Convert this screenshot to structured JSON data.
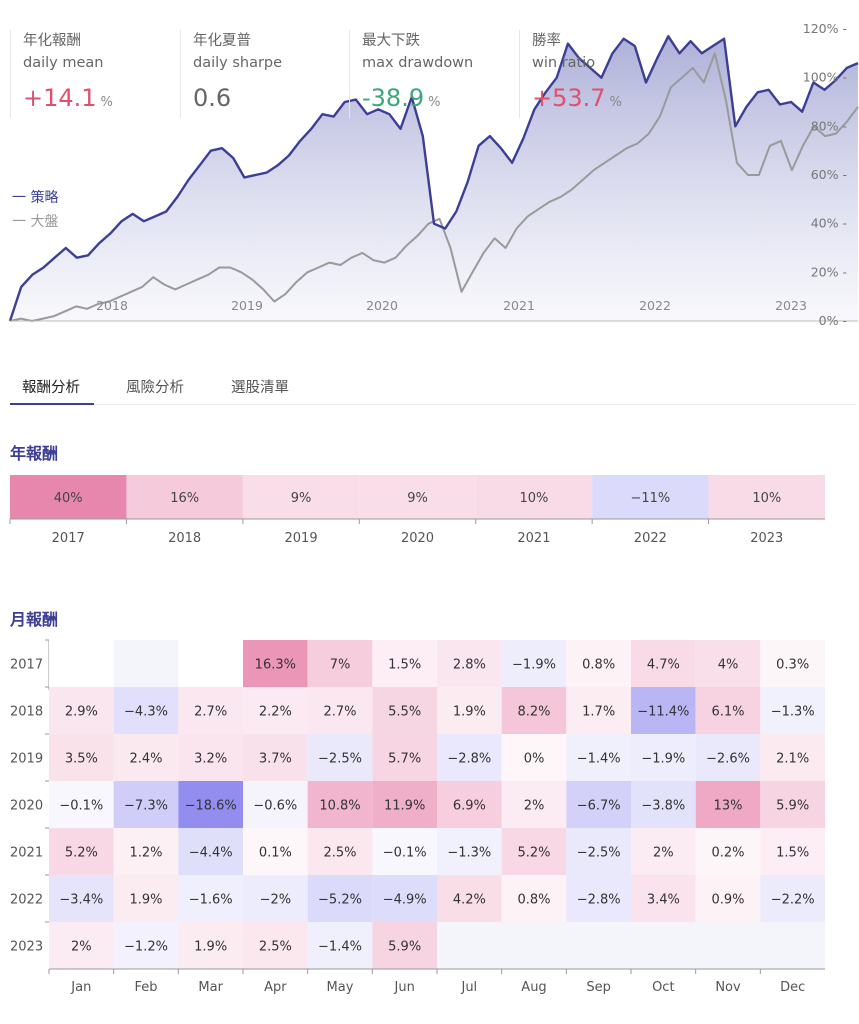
{
  "stats": [
    {
      "zh": "年化報酬",
      "en": "daily mean",
      "value": "+14.1",
      "unit": "%",
      "color": "#e0506e"
    },
    {
      "zh": "年化夏普",
      "en": "daily sharpe",
      "value": "0.6",
      "unit": "",
      "color": "#666666"
    },
    {
      "zh": "最大下跌",
      "en": "max drawdown",
      "value": "-38.9",
      "unit": "%",
      "color": "#3aa87b"
    },
    {
      "zh": "勝率",
      "en": "win ratio",
      "value": "+53.7",
      "unit": "%",
      "color": "#e0506e"
    }
  ],
  "legend": {
    "strategy": "一 策略",
    "market": "一 大盤"
  },
  "tabs": [
    "報酬分析",
    "風險分析",
    "選股清單"
  ],
  "sections": {
    "annual": "年報酬",
    "monthly": "月報酬"
  },
  "chart_data": [
    {
      "type": "area",
      "x_ticks": [
        "2018",
        "2019",
        "2020",
        "2021",
        "2022",
        "2023"
      ],
      "y_ticks": [
        "0%",
        "20%",
        "40%",
        "60%",
        "80%",
        "100%",
        "120%"
      ],
      "ylim": [
        0,
        120
      ],
      "series": [
        {
          "name": "策略",
          "color": "#3c3f94",
          "values": [
            0,
            14,
            19,
            22,
            26,
            30,
            26,
            27,
            32,
            36,
            41,
            44,
            41,
            43,
            45,
            51,
            58,
            64,
            70,
            71,
            67,
            59,
            60,
            61,
            64,
            68,
            74,
            79,
            85,
            84,
            90,
            91,
            85,
            87,
            85,
            79,
            92,
            76,
            40,
            38,
            45,
            57,
            72,
            76,
            71,
            65,
            75,
            87,
            94,
            100,
            114,
            108,
            104,
            100,
            110,
            116,
            113,
            98,
            108,
            117,
            110,
            115,
            110,
            113,
            116,
            80,
            88,
            94,
            95,
            89,
            90,
            86,
            98,
            95,
            99,
            104,
            106
          ]
        },
        {
          "name": "大盤",
          "color": "#9a9a9a",
          "values": [
            0,
            1,
            0,
            1,
            2,
            4,
            6,
            5,
            7,
            8,
            10,
            12,
            14,
            18,
            15,
            13,
            15,
            17,
            19,
            22,
            22,
            20,
            17,
            13,
            8,
            11,
            16,
            20,
            22,
            24,
            23,
            26,
            28,
            25,
            24,
            26,
            31,
            35,
            40,
            42,
            30,
            12,
            20,
            28,
            34,
            30,
            38,
            43,
            46,
            49,
            51,
            54,
            58,
            62,
            65,
            68,
            71,
            73,
            77,
            84,
            96,
            100,
            104,
            98,
            110,
            91,
            65,
            60,
            60,
            72,
            74,
            62,
            72,
            80,
            76,
            77,
            82,
            88
          ]
        }
      ]
    },
    {
      "type": "heatmap",
      "categories": [
        "2017",
        "2018",
        "2019",
        "2020",
        "2021",
        "2022",
        "2023"
      ],
      "values": [
        40,
        16,
        9,
        9,
        10,
        -11,
        10
      ],
      "labels": [
        "40%",
        "16%",
        "9%",
        "9%",
        "10%",
        "−11%",
        "10%"
      ]
    },
    {
      "type": "heatmap",
      "rows": [
        "2017",
        "2018",
        "2019",
        "2020",
        "2021",
        "2022",
        "2023"
      ],
      "columns": [
        "Jan",
        "Feb",
        "Mar",
        "Apr",
        "May",
        "Jun",
        "Jul",
        "Aug",
        "Sep",
        "Oct",
        "Nov",
        "Dec"
      ],
      "values": [
        [
          null,
          null,
          null,
          16.3,
          7,
          1.5,
          2.8,
          -1.9,
          0.8,
          4.7,
          4,
          0.3
        ],
        [
          2.9,
          -4.3,
          2.7,
          2.2,
          2.7,
          5.5,
          1.9,
          8.2,
          1.7,
          -11.4,
          6.1,
          -1.3
        ],
        [
          3.5,
          2.4,
          3.2,
          3.7,
          -2.5,
          5.7,
          -2.8,
          0,
          -1.4,
          -1.9,
          -2.6,
          2.1
        ],
        [
          -0.1,
          -7.3,
          -18.6,
          -0.6,
          10.8,
          11.9,
          6.9,
          2,
          -6.7,
          -3.8,
          13,
          5.9
        ],
        [
          5.2,
          1.2,
          -4.4,
          0.1,
          2.5,
          -0.1,
          -1.3,
          5.2,
          -2.5,
          2,
          0.2,
          1.5
        ],
        [
          -3.4,
          1.9,
          -1.6,
          -2,
          -5.2,
          -4.9,
          4.2,
          0.8,
          -2.8,
          3.4,
          0.9,
          -2.2
        ],
        [
          2,
          -1.2,
          1.9,
          2.5,
          -1.4,
          5.9,
          null,
          null,
          null,
          null,
          null,
          null
        ]
      ],
      "labels": [
        [
          "",
          "",
          "",
          "16.3%",
          "7%",
          "1.5%",
          "2.8%",
          "−1.9%",
          "0.8%",
          "4.7%",
          "4%",
          "0.3%"
        ],
        [
          "2.9%",
          "−4.3%",
          "2.7%",
          "2.2%",
          "2.7%",
          "5.5%",
          "1.9%",
          "8.2%",
          "1.7%",
          "−11.4%",
          "6.1%",
          "−1.3%"
        ],
        [
          "3.5%",
          "2.4%",
          "3.2%",
          "3.7%",
          "−2.5%",
          "5.7%",
          "−2.8%",
          "0%",
          "−1.4%",
          "−1.9%",
          "−2.6%",
          "2.1%"
        ],
        [
          "−0.1%",
          "−7.3%",
          "−18.6%",
          "−0.6%",
          "10.8%",
          "11.9%",
          "6.9%",
          "2%",
          "−6.7%",
          "−3.8%",
          "13%",
          "5.9%"
        ],
        [
          "5.2%",
          "1.2%",
          "−4.4%",
          "0.1%",
          "2.5%",
          "−0.1%",
          "−1.3%",
          "5.2%",
          "−2.5%",
          "2%",
          "0.2%",
          "1.5%"
        ],
        [
          "−3.4%",
          "1.9%",
          "−1.6%",
          "−2%",
          "−5.2%",
          "−4.9%",
          "4.2%",
          "0.8%",
          "−2.8%",
          "3.4%",
          "0.9%",
          "−2.2%"
        ],
        [
          "2%",
          "−1.2%",
          "1.9%",
          "2.5%",
          "−1.4%",
          "5.9%",
          "",
          "",
          "",
          "",
          "",
          ""
        ]
      ]
    }
  ],
  "colors": {
    "positive": "#e77fa8",
    "negative": "#8c86ee",
    "empty": "#f4f5fa",
    "accent": "#3c3f94"
  }
}
